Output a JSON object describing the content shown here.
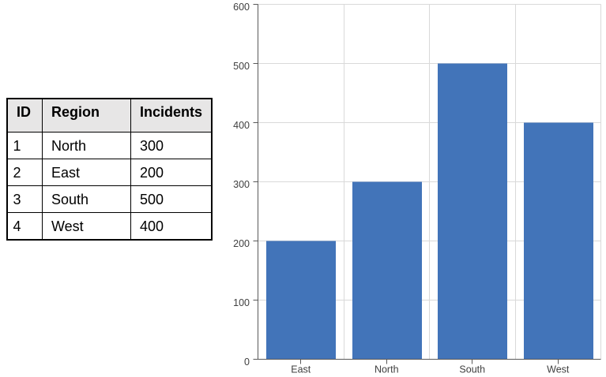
{
  "table": {
    "columns": [
      {
        "key": "id",
        "label": "ID"
      },
      {
        "key": "region",
        "label": "Region"
      },
      {
        "key": "incidents",
        "label": "Incidents"
      }
    ],
    "rows": [
      {
        "id": "1",
        "region": "North",
        "incidents": "300"
      },
      {
        "id": "2",
        "region": "East",
        "incidents": "200"
      },
      {
        "id": "3",
        "region": "South",
        "incidents": "500"
      },
      {
        "id": "4",
        "region": "West",
        "incidents": "400"
      }
    ],
    "header_fill": "#e7e6e6",
    "border_color": "#000000"
  },
  "chart_data": {
    "type": "bar",
    "categories": [
      "East",
      "North",
      "South",
      "West"
    ],
    "values": [
      200,
      300,
      500,
      400
    ],
    "title": "",
    "xlabel": "",
    "ylabel": "",
    "ylim": [
      0,
      600
    ],
    "ytick_step": 100,
    "yticks": [
      0,
      100,
      200,
      300,
      400,
      500,
      600
    ],
    "grid": true,
    "legend": false,
    "bar_color": "#4274b9",
    "grid_color": "#d9d9d9",
    "axis_color": "#595959",
    "label_color": "#404040"
  }
}
